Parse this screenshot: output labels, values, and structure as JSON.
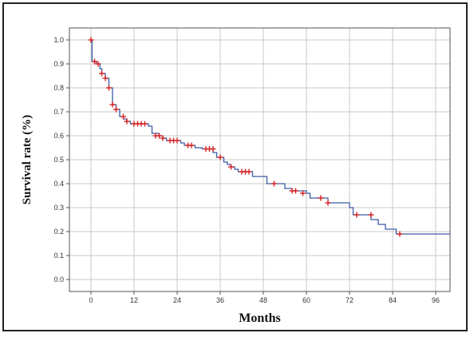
{
  "chart_data": {
    "type": "line",
    "xlabel": "Months",
    "ylabel": "Survival rate (%)",
    "xlim": [
      -6,
      100
    ],
    "ylim": [
      -0.05,
      1.05
    ],
    "xticks": [
      0,
      12,
      24,
      36,
      48,
      60,
      72,
      84,
      96
    ],
    "yticks": [
      0.0,
      0.1,
      0.2,
      0.3,
      0.4,
      0.5,
      0.6,
      0.7,
      0.8,
      0.9,
      1.0
    ],
    "grid": true,
    "colors": {
      "line": "#3b5ba5",
      "censor": "#d62020",
      "grid": "#c8c8c8"
    },
    "series": [
      {
        "step_points": [
          [
            0,
            1.0
          ],
          [
            0.3,
            0.91
          ],
          [
            1.5,
            0.9
          ],
          [
            2.5,
            0.88
          ],
          [
            3,
            0.86
          ],
          [
            4,
            0.84
          ],
          [
            5,
            0.8
          ],
          [
            6,
            0.73
          ],
          [
            7,
            0.71
          ],
          [
            8,
            0.68
          ],
          [
            9,
            0.67
          ],
          [
            10,
            0.66
          ],
          [
            11,
            0.65
          ],
          [
            16,
            0.64
          ],
          [
            17,
            0.61
          ],
          [
            19,
            0.6
          ],
          [
            20,
            0.59
          ],
          [
            21,
            0.58
          ],
          [
            25,
            0.57
          ],
          [
            26,
            0.56
          ],
          [
            29,
            0.55
          ],
          [
            31,
            0.545
          ],
          [
            34,
            0.53
          ],
          [
            35,
            0.51
          ],
          [
            37,
            0.49
          ],
          [
            38,
            0.48
          ],
          [
            39,
            0.47
          ],
          [
            40,
            0.46
          ],
          [
            41,
            0.45
          ],
          [
            45,
            0.43
          ],
          [
            49,
            0.4
          ],
          [
            54,
            0.38
          ],
          [
            56,
            0.37
          ],
          [
            60,
            0.36
          ],
          [
            61,
            0.34
          ],
          [
            66,
            0.32
          ],
          [
            72,
            0.3
          ],
          [
            73,
            0.27
          ],
          [
            78,
            0.25
          ],
          [
            80,
            0.23
          ],
          [
            82,
            0.21
          ],
          [
            85,
            0.19
          ],
          [
            100,
            0.19
          ]
        ],
        "censored": [
          [
            0,
            1.0
          ],
          [
            1,
            0.91
          ],
          [
            2,
            0.9
          ],
          [
            3,
            0.86
          ],
          [
            4,
            0.84
          ],
          [
            5,
            0.8
          ],
          [
            6,
            0.73
          ],
          [
            7,
            0.71
          ],
          [
            9,
            0.68
          ],
          [
            10,
            0.66
          ],
          [
            12,
            0.65
          ],
          [
            13,
            0.65
          ],
          [
            14,
            0.65
          ],
          [
            15,
            0.65
          ],
          [
            18,
            0.6
          ],
          [
            19,
            0.6
          ],
          [
            20,
            0.59
          ],
          [
            22,
            0.58
          ],
          [
            23,
            0.58
          ],
          [
            24,
            0.58
          ],
          [
            27,
            0.56
          ],
          [
            28,
            0.56
          ],
          [
            32,
            0.545
          ],
          [
            33,
            0.545
          ],
          [
            34,
            0.545
          ],
          [
            36,
            0.51
          ],
          [
            39,
            0.47
          ],
          [
            42,
            0.45
          ],
          [
            43,
            0.45
          ],
          [
            44,
            0.45
          ],
          [
            51,
            0.4
          ],
          [
            56,
            0.37
          ],
          [
            57,
            0.37
          ],
          [
            59,
            0.36
          ],
          [
            64,
            0.34
          ],
          [
            66,
            0.32
          ],
          [
            74,
            0.27
          ],
          [
            78,
            0.27
          ],
          [
            86,
            0.19
          ]
        ]
      }
    ]
  }
}
